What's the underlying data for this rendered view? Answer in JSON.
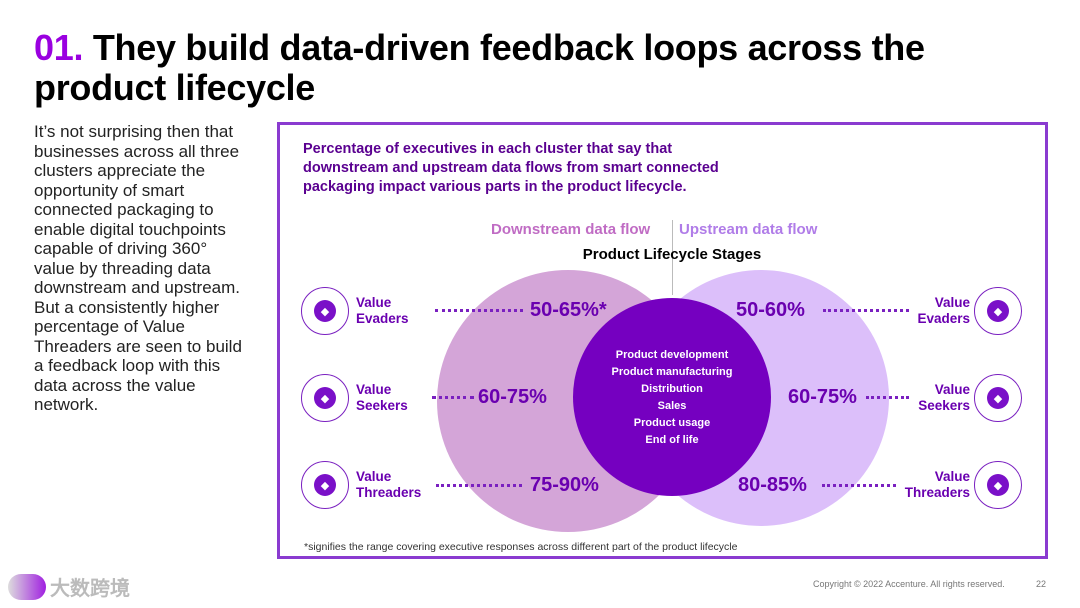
{
  "title": {
    "number": "01.",
    "text": " They build data-driven feedback loops across the product lifecycle"
  },
  "body_text": "It’s not surprising then that businesses across all three clusters appreciate the opportunity of smart connected packaging to enable digital touchpoints capable of driving 360° value by threading data downstream and upstream. But a consistently higher percentage of Value Threaders are seen to build a feedback loop with this data across the value network.",
  "figure": {
    "caption": "Percentage of executives in each cluster that say that downstream and upstream data flows from smart connected packaging impact various parts in the product lifecycle.",
    "downstream_label": "Downstream data flow",
    "upstream_label": "Upstream data flow",
    "center_title": "Product Lifecycle Stages",
    "stages": [
      "Product development",
      "Product manufacturing",
      "Distribution",
      "Sales",
      "Product usage",
      "End of life"
    ],
    "clusters": [
      {
        "line1": "Value",
        "line2": "Evaders",
        "icon": "diamond-arrow-icon",
        "downstream": "50-65%*",
        "upstream": "50-60%"
      },
      {
        "line1": "Value",
        "line2": "Seekers",
        "icon": "magnifier-diamond-icon",
        "downstream": "60-75%",
        "upstream": "60-75%"
      },
      {
        "line1": "Value",
        "line2": "Threaders",
        "icon": "yarn-needles-icon",
        "downstream": "75-90%",
        "upstream": "80-85%"
      }
    ],
    "footnote": "*signifies the range covering executive responses across different part of the product lifecycle"
  },
  "footer": {
    "copyright": "Copyright © 2022 Accenture. All rights reserved.",
    "page": "22",
    "watermark": "大数跨境"
  },
  "colors": {
    "accent": "#9a00e0",
    "downstream": "#d4a5d8",
    "upstream": "#d9b8fa",
    "center": "#7500c0"
  }
}
